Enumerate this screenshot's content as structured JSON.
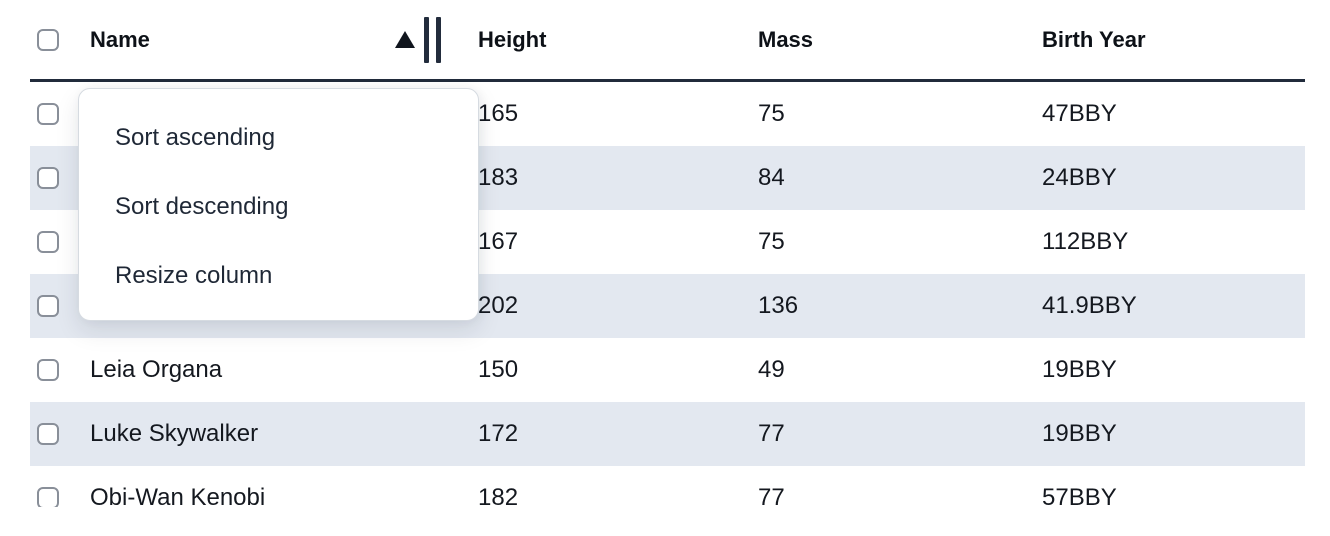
{
  "table": {
    "columns": [
      {
        "id": "name",
        "label": "Name",
        "sort": "ascending"
      },
      {
        "id": "height",
        "label": "Height",
        "sort": null
      },
      {
        "id": "mass",
        "label": "Mass",
        "sort": null
      },
      {
        "id": "birth_year",
        "label": "Birth Year",
        "sort": null
      }
    ],
    "select_all_checked": false,
    "rows": [
      {
        "name": "",
        "height": "165",
        "mass": "75",
        "birth_year": "47BBY",
        "checked": false
      },
      {
        "name": "",
        "height": "183",
        "mass": "84",
        "birth_year": "24BBY",
        "checked": false
      },
      {
        "name": "",
        "height": "167",
        "mass": "75",
        "birth_year": "112BBY",
        "checked": false
      },
      {
        "name": "",
        "height": "202",
        "mass": "136",
        "birth_year": "41.9BBY",
        "checked": false
      },
      {
        "name": "Leia Organa",
        "height": "150",
        "mass": "49",
        "birth_year": "19BBY",
        "checked": false
      },
      {
        "name": "Luke Skywalker",
        "height": "172",
        "mass": "77",
        "birth_year": "19BBY",
        "checked": false
      },
      {
        "name": "Obi-Wan Kenobi",
        "height": "182",
        "mass": "77",
        "birth_year": "57BBY",
        "checked": false
      }
    ]
  },
  "context_menu": {
    "open_for_column": "Name",
    "items": [
      {
        "id": "sort-ascending",
        "label": "Sort ascending"
      },
      {
        "id": "sort-descending",
        "label": "Sort descending"
      },
      {
        "id": "resize-column",
        "label": "Resize column"
      }
    ]
  },
  "colors": {
    "row_stripe": "#e3e8f0",
    "header_border": "#212b3b",
    "text": "#14181f",
    "menu_border": "#d6dbe1",
    "checkbox_border": "#898f99"
  }
}
